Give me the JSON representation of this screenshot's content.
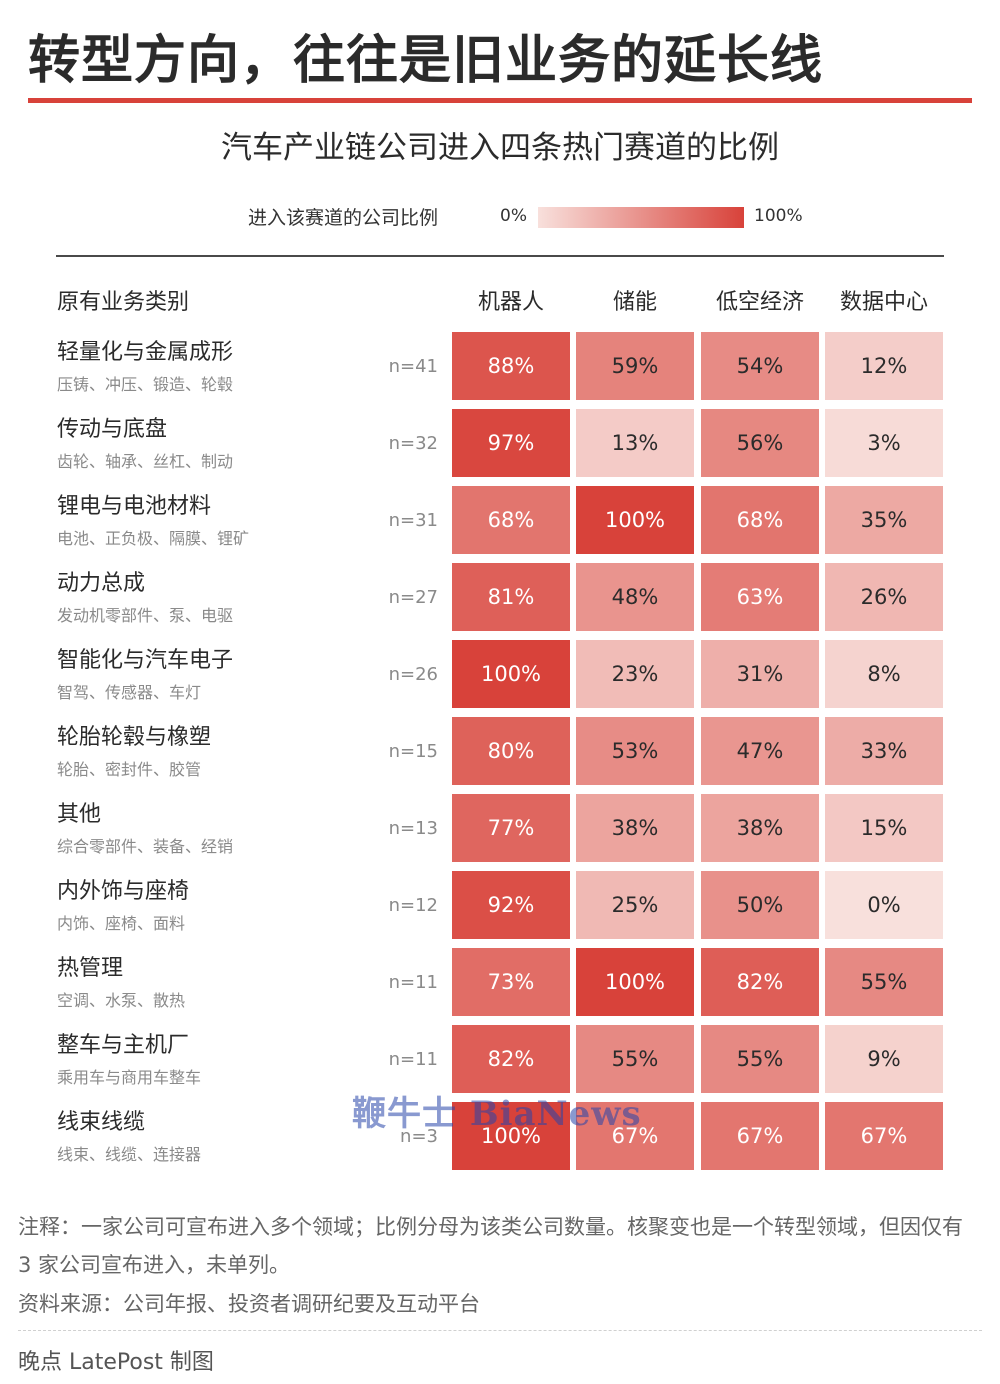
{
  "title": "转型方向，往往是旧业务的延长线",
  "subtitle": "汽车产业链公司进入四条热门赛道的比例",
  "legend": {
    "label": "进入该赛道的公司比例",
    "min": "0%",
    "max": "100%"
  },
  "colors": {
    "accent": "#d8423a",
    "scale_low": "#f8e0dc",
    "scale_high": "#d8423a"
  },
  "chart_data": {
    "type": "heatmap",
    "row_header": "原有业务类别",
    "columns": [
      "机器人",
      "储能",
      "低空经济",
      "数据中心"
    ],
    "value_unit": "%",
    "color_range": [
      0,
      100
    ],
    "rows": [
      {
        "name": "轻量化与金属成形",
        "sub": "压铸、冲压、锻造、轮毂",
        "n": "n=41",
        "values": [
          88,
          59,
          54,
          12
        ]
      },
      {
        "name": "传动与底盘",
        "sub": "齿轮、轴承、丝杠、制动",
        "n": "n=32",
        "values": [
          97,
          13,
          56,
          3
        ]
      },
      {
        "name": "锂电与电池材料",
        "sub": "电池、正负极、隔膜、锂矿",
        "n": "n=31",
        "values": [
          68,
          100,
          68,
          35
        ]
      },
      {
        "name": "动力总成",
        "sub": "发动机零部件、泵、电驱",
        "n": "n=27",
        "values": [
          81,
          48,
          63,
          26
        ]
      },
      {
        "name": "智能化与汽车电子",
        "sub": "智驾、传感器、车灯",
        "n": "n=26",
        "values": [
          100,
          23,
          31,
          8
        ]
      },
      {
        "name": "轮胎轮毂与橡塑",
        "sub": "轮胎、密封件、胶管",
        "n": "n=15",
        "values": [
          80,
          53,
          47,
          33
        ]
      },
      {
        "name": "其他",
        "sub": "综合零部件、装备、经销",
        "n": "n=13",
        "values": [
          77,
          38,
          38,
          15
        ]
      },
      {
        "name": "内外饰与座椅",
        "sub": "内饰、座椅、面料",
        "n": "n=12",
        "values": [
          92,
          25,
          50,
          0
        ]
      },
      {
        "name": "热管理",
        "sub": "空调、水泵、散热",
        "n": "n=11",
        "values": [
          73,
          100,
          82,
          55
        ]
      },
      {
        "name": "整车与主机厂",
        "sub": "乘用车与商用车整车",
        "n": "n=11",
        "values": [
          82,
          55,
          55,
          9
        ]
      },
      {
        "name": "线束线缆",
        "sub": "线束、线缆、连接器",
        "n": "n=3",
        "values": [
          100,
          67,
          67,
          67
        ]
      }
    ]
  },
  "watermark": "鞭牛士 BiaNews",
  "footer": {
    "note": "注释：一家公司可宣布进入多个领域；比例分母为该类公司数量。核聚变也是一个转型领域，但因仅有 3 家公司宣布进入，未单列。",
    "source": "资料来源：公司年报、投资者调研纪要及互动平台",
    "credit": "晚点 LatePost 制图"
  }
}
